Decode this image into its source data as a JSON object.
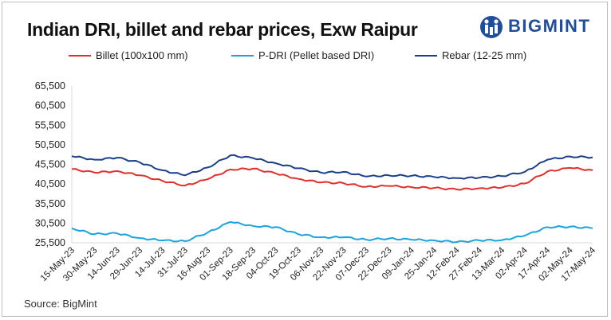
{
  "title": "Indian DRI, billet and rebar prices, Exw Raipur",
  "logo": {
    "text": "BIGMINT",
    "icon": "bigmint-logo-icon",
    "color": "#1f4e9c"
  },
  "source": "Source: BigMint",
  "chart_data": {
    "type": "line",
    "title": "Indian DRI, billet and rebar prices, Exw Raipur",
    "xlabel": "",
    "ylabel": "",
    "ylim": [
      25500,
      65500
    ],
    "yticks": [
      "65,500",
      "60,500",
      "55,500",
      "50,500",
      "45,500",
      "40,500",
      "35,500",
      "30,500",
      "25,500"
    ],
    "ytick_values": [
      65500,
      60500,
      55500,
      50500,
      45500,
      40500,
      35500,
      30500,
      25500
    ],
    "grid": false,
    "legend_position": "top",
    "x": [
      "15-May-23",
      "30-May-23",
      "14-Jun-23",
      "29-Jun-23",
      "14-Jul-23",
      "31-Jul-23",
      "16-Aug-23",
      "01-Sep-23",
      "18-Sep-23",
      "04-Oct-23",
      "19-Oct-23",
      "06-Nov-23",
      "22-Nov-23",
      "07-Dec-23",
      "22-Dec-23",
      "09-Jan-24",
      "25-Jan-24",
      "12-Feb-24",
      "27-Feb-24",
      "13-Mar-24",
      "02-Apr-24",
      "17-Apr-24",
      "02-May-24",
      "17-May-24"
    ],
    "series": [
      {
        "name": "Billet (100x100 mm)",
        "color": "#e0302c",
        "values": [
          44300,
          43400,
          43800,
          42700,
          41300,
          40100,
          41700,
          44200,
          44400,
          43200,
          41800,
          40900,
          40700,
          39800,
          40000,
          39700,
          39500,
          39100,
          39400,
          39600,
          40600,
          43700,
          44600,
          44000
        ]
      },
      {
        "name": "P-DRI (Pellet based DRI)",
        "color": "#1aa3dc",
        "values": [
          29200,
          27700,
          27900,
          26700,
          26100,
          25900,
          28100,
          30800,
          29800,
          29500,
          27700,
          26900,
          26900,
          26300,
          26600,
          26300,
          26100,
          25700,
          26100,
          26200,
          27300,
          29500,
          29600,
          29200
        ]
      },
      {
        "name": "Rebar (12-25 mm)",
        "color": "#1b3f8a",
        "values": [
          47600,
          46700,
          47200,
          46000,
          44000,
          42700,
          44700,
          47800,
          47100,
          45800,
          44500,
          43400,
          43600,
          42400,
          42700,
          42600,
          42300,
          42000,
          42100,
          42500,
          43600,
          46700,
          47500,
          47300
        ]
      }
    ]
  }
}
